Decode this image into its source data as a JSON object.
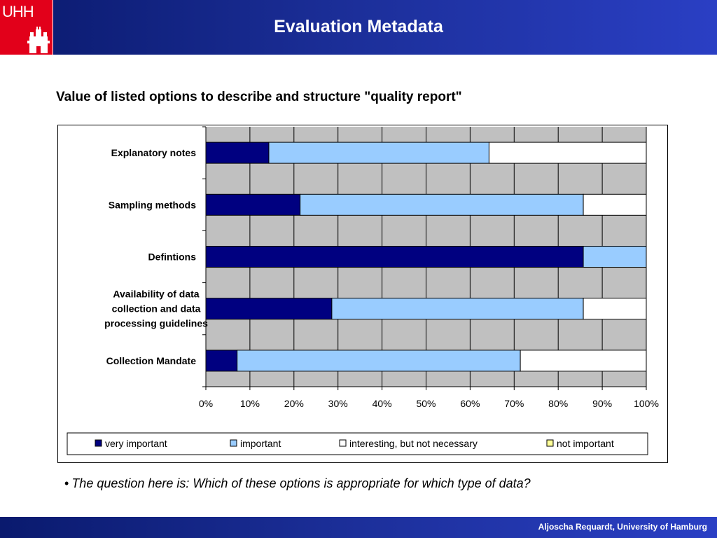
{
  "header": {
    "logo_text": "UHH",
    "title": "Evaluation Metadata"
  },
  "chart_title": "Value of listed options to describe and structure \"quality report\"",
  "chart_data": {
    "type": "bar",
    "orientation": "horizontal",
    "stacked": "percent",
    "categories": [
      "Explanatory notes",
      "Sampling methods",
      "Defintions",
      "Availability of data collection and data processing guidelines",
      "Collection Mandate"
    ],
    "series": [
      {
        "name": "very important",
        "color": "#000080",
        "values": [
          14.3,
          21.4,
          85.7,
          28.6,
          7.1
        ]
      },
      {
        "name": "important",
        "color": "#99ccff",
        "values": [
          50.0,
          64.3,
          14.3,
          57.1,
          64.3
        ]
      },
      {
        "name": "interesting, but not necessary",
        "color": "#ffffff",
        "values": [
          35.7,
          14.3,
          0,
          14.3,
          28.6
        ]
      },
      {
        "name": "not important",
        "color": "#ffff99",
        "values": [
          0,
          0,
          0,
          0,
          0
        ]
      }
    ],
    "xlim": [
      0,
      100
    ],
    "x_ticks": [
      "0%",
      "10%",
      "20%",
      "30%",
      "40%",
      "50%",
      "60%",
      "70%",
      "80%",
      "90%",
      "100%"
    ],
    "grid": true,
    "plot_background": "#c0c0c0",
    "legend_position": "bottom"
  },
  "note": "The question here is: Which of these options is appropriate for which type of data?",
  "footer": {
    "text": "Aljoscha Requardt, University of Hamburg"
  },
  "colors": {
    "header_dark": "#0a1a6e",
    "header_light": "#2a3fc4",
    "logo_red": "#e2001a"
  }
}
